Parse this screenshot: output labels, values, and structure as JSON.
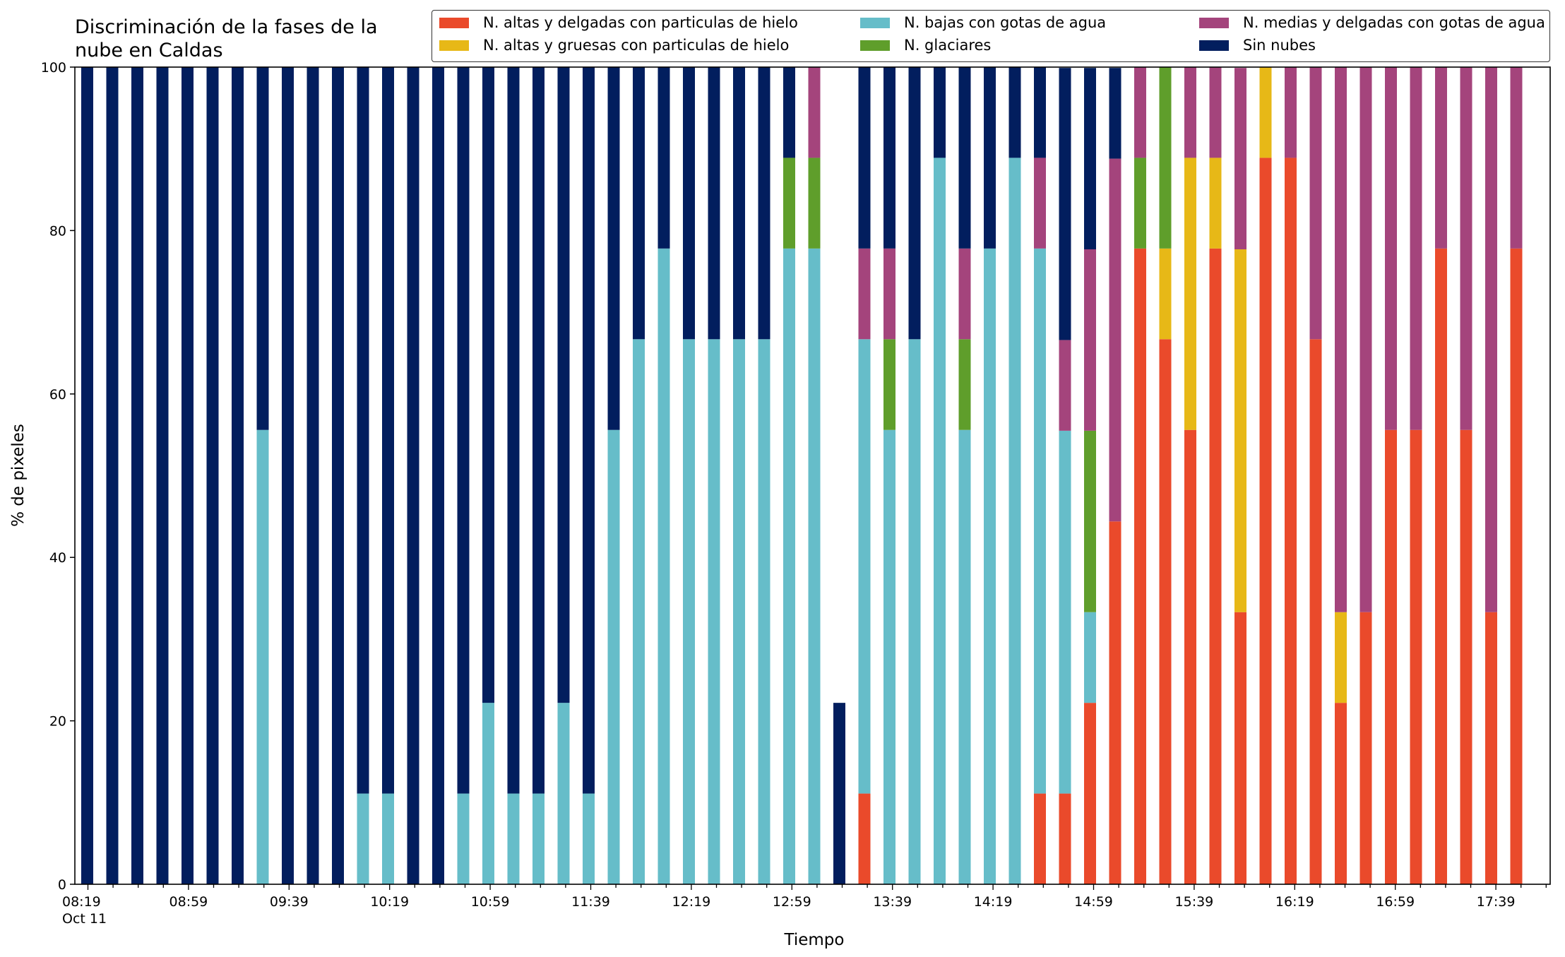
{
  "chart_data": {
    "type": "bar",
    "stacked": true,
    "title": "Discriminación de la fases de la\nnube en Caldas",
    "xlabel": "Tiempo",
    "ylabel": "% de pixeles",
    "ylim": [
      0,
      100
    ],
    "yticks": [
      0,
      20,
      40,
      60,
      80,
      100
    ],
    "grid": false,
    "legend_position": "top",
    "xtick_labels": [
      "08:19\nOct 11",
      "08:59",
      "09:39",
      "10:19",
      "10:59",
      "11:39",
      "12:19",
      "12:59",
      "13:39",
      "14:19",
      "14:59",
      "15:39",
      "16:19",
      "16:59",
      "17:39"
    ],
    "series": [
      {
        "name": "N. altas y delgadas con particulas de hielo",
        "color": "#ea4a2b",
        "values": [
          0,
          0,
          0,
          0,
          0,
          0,
          0,
          0,
          0,
          0,
          0,
          0,
          0,
          0,
          0,
          0,
          0,
          0,
          0,
          0,
          0,
          0,
          0,
          0,
          0,
          0,
          0,
          0,
          0,
          0,
          0,
          11.1,
          0,
          0,
          0,
          0,
          0,
          0,
          11.1,
          11.1,
          22.2,
          44.4,
          77.8,
          66.7,
          55.6,
          77.8,
          33.3,
          88.9,
          88.9,
          66.7,
          22.2,
          33.3,
          55.6,
          55.6,
          77.8,
          55.6,
          33.3,
          77.8
        ]
      },
      {
        "name": "N. altas y gruesas con particulas de hielo",
        "color": "#e7b817",
        "values": [
          0,
          0,
          0,
          0,
          0,
          0,
          0,
          0,
          0,
          0,
          0,
          0,
          0,
          0,
          0,
          0,
          0,
          0,
          0,
          0,
          0,
          0,
          0,
          0,
          0,
          0,
          0,
          0,
          0,
          0,
          0,
          0,
          0,
          0,
          0,
          0,
          0,
          0,
          0,
          0,
          0,
          0,
          0,
          11.1,
          33.3,
          11.1,
          44.4,
          11.1,
          0,
          0,
          11.1,
          0,
          0,
          0,
          0,
          0,
          0,
          0
        ]
      },
      {
        "name": "N. bajas con gotas de agua",
        "color": "#66bdc9",
        "values": [
          0,
          0,
          0,
          0,
          0,
          0,
          0,
          55.6,
          0,
          0,
          0,
          11.1,
          11.1,
          0,
          0,
          11.1,
          22.2,
          11.1,
          11.1,
          22.2,
          11.1,
          55.6,
          66.7,
          77.8,
          66.7,
          66.7,
          66.7,
          66.7,
          77.8,
          77.8,
          0,
          55.6,
          55.6,
          66.7,
          88.9,
          55.6,
          77.8,
          88.9,
          66.7,
          44.4,
          11.1,
          0,
          0,
          0,
          0,
          0,
          0,
          0,
          0,
          0,
          0,
          0,
          0,
          0,
          0,
          0,
          0,
          0
        ]
      },
      {
        "name": "N. glaciares",
        "color": "#5f9e2b",
        "values": [
          0,
          0,
          0,
          0,
          0,
          0,
          0,
          0,
          0,
          0,
          0,
          0,
          0,
          0,
          0,
          0,
          0,
          0,
          0,
          0,
          0,
          0,
          0,
          0,
          0,
          0,
          0,
          0,
          11.1,
          11.1,
          0,
          0,
          11.1,
          0,
          0,
          11.1,
          0,
          0,
          0,
          0,
          22.2,
          0,
          11.1,
          22.2,
          0,
          0,
          0,
          0,
          0,
          0,
          0,
          0,
          0,
          0,
          0,
          0,
          0,
          0
        ]
      },
      {
        "name": "N. medias y delgadas con gotas de agua",
        "color": "#a4447c",
        "values": [
          0,
          0,
          0,
          0,
          0,
          0,
          0,
          0,
          0,
          0,
          0,
          0,
          0,
          0,
          0,
          0,
          0,
          0,
          0,
          0,
          0,
          0,
          0,
          0,
          0,
          0,
          0,
          0,
          0,
          11.1,
          0,
          11.1,
          11.1,
          0,
          0,
          11.1,
          0,
          0,
          11.1,
          11.1,
          22.2,
          44.4,
          11.1,
          0,
          11.1,
          11.1,
          22.2,
          0,
          11.1,
          33.3,
          66.7,
          66.7,
          44.4,
          44.4,
          22.2,
          44.4,
          66.7,
          22.2
        ]
      },
      {
        "name": "Sin nubes",
        "color": "#021e5e",
        "values": [
          100,
          100,
          100,
          100,
          100,
          100,
          100,
          44.4,
          100,
          100,
          100,
          88.9,
          88.9,
          100,
          100,
          88.9,
          77.8,
          88.9,
          88.9,
          77.8,
          88.9,
          44.4,
          33.3,
          22.2,
          33.3,
          33.3,
          33.3,
          33.3,
          11.1,
          0,
          22.2,
          22.2,
          22.2,
          33.3,
          11.1,
          22.2,
          22.2,
          11.1,
          11.1,
          33.3,
          22.2,
          11.1,
          0,
          0,
          0,
          0,
          0,
          0,
          0,
          0,
          0,
          0,
          0,
          0,
          0,
          0,
          0,
          0
        ]
      }
    ]
  }
}
